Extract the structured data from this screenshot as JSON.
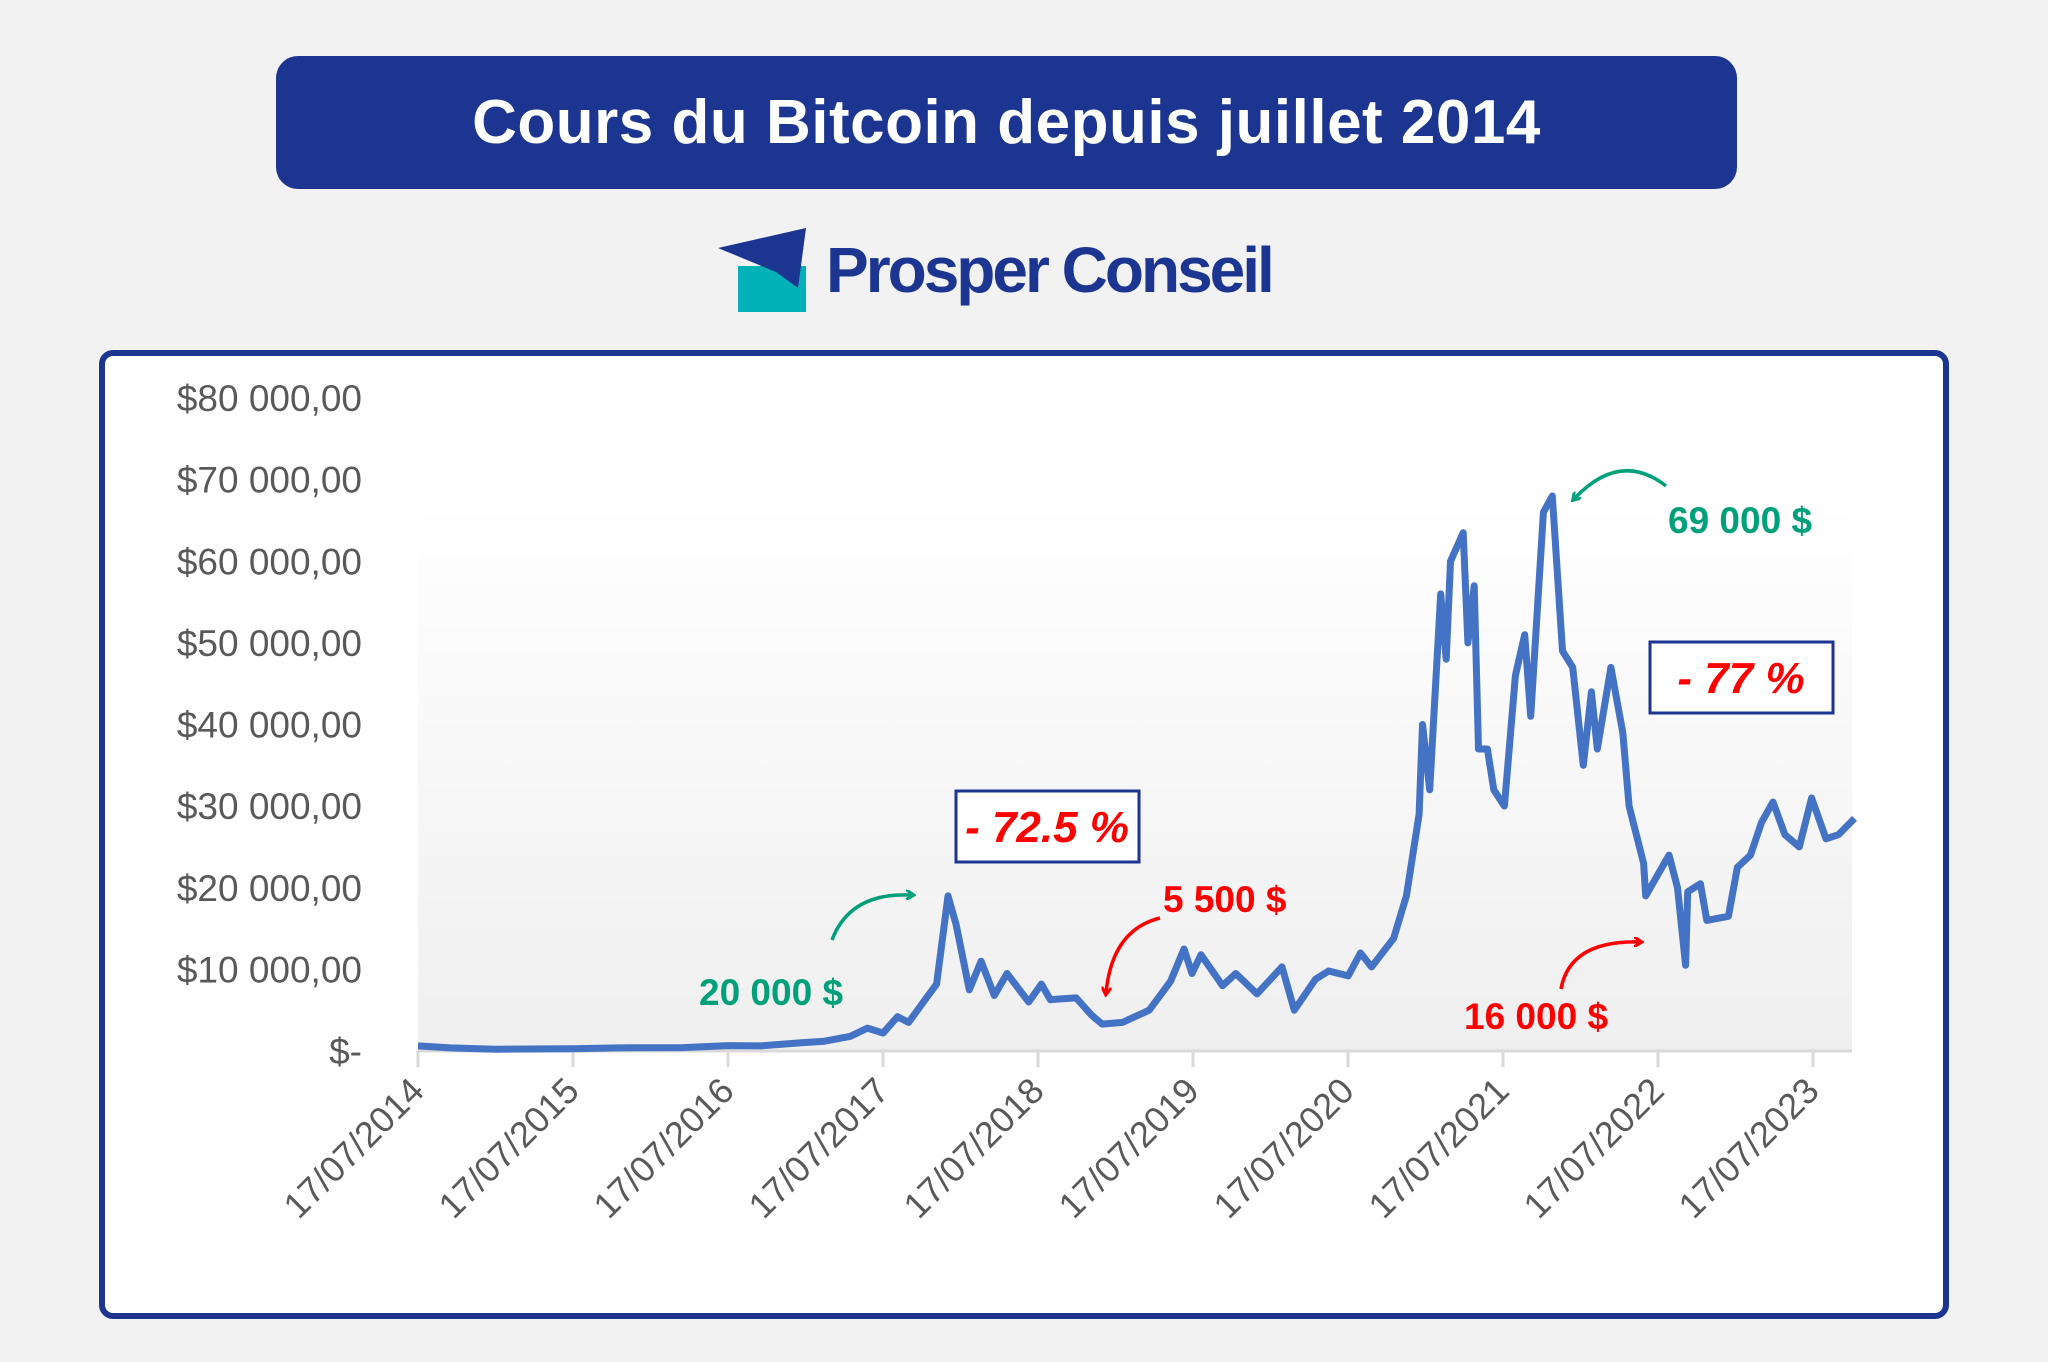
{
  "header": {
    "title": "Cours du Bitcoin depuis juillet 2014"
  },
  "logo": {
    "text": "Prosper Conseil",
    "colors": {
      "primary": "#1c3590",
      "accent": "#00b2b8"
    }
  },
  "colors": {
    "line": "#4472c4",
    "positive": "#00a07a",
    "negative": "#ff0000",
    "frame": "#1c3590"
  },
  "chart_data": {
    "type": "line",
    "title": "",
    "xlabel": "",
    "ylabel": "",
    "ylim": [
      0,
      80000
    ],
    "grid": false,
    "y_ticks": [
      {
        "value": 0,
        "label": "$-"
      },
      {
        "value": 10000,
        "label": "$10 000,00"
      },
      {
        "value": 20000,
        "label": "$20 000,00"
      },
      {
        "value": 30000,
        "label": "$30 000,00"
      },
      {
        "value": 40000,
        "label": "$40 000,00"
      },
      {
        "value": 50000,
        "label": "$50 000,00"
      },
      {
        "value": 60000,
        "label": "$60 000,00"
      },
      {
        "value": 70000,
        "label": "$70 000,00"
      },
      {
        "value": 80000,
        "label": "$80 000,00"
      }
    ],
    "x_ticks": [
      "17/07/2014",
      "17/07/2015",
      "17/07/2016",
      "17/07/2017",
      "17/07/2018",
      "17/07/2019",
      "17/07/2020",
      "17/07/2021",
      "17/07/2022",
      "17/07/2023"
    ],
    "series": [
      {
        "points": [
          [
            "2014-07-17",
            620
          ],
          [
            "2014-10-01",
            380
          ],
          [
            "2015-01-15",
            220
          ],
          [
            "2015-04-01",
            240
          ],
          [
            "2015-07-17",
            280
          ],
          [
            "2015-11-01",
            380
          ],
          [
            "2016-01-15",
            400
          ],
          [
            "2016-04-01",
            420
          ],
          [
            "2016-07-17",
            660
          ],
          [
            "2016-10-01",
            620
          ],
          [
            "2017-01-05",
            1000
          ],
          [
            "2017-03-01",
            1200
          ],
          [
            "2017-05-01",
            1800
          ],
          [
            "2017-06-10",
            2800
          ],
          [
            "2017-07-17",
            2200
          ],
          [
            "2017-08-20",
            4200
          ],
          [
            "2017-09-15",
            3500
          ],
          [
            "2017-10-20",
            6000
          ],
          [
            "2017-11-20",
            8200
          ],
          [
            "2017-12-17",
            19000
          ],
          [
            "2018-01-05",
            15500
          ],
          [
            "2018-02-05",
            7500
          ],
          [
            "2018-03-05",
            11000
          ],
          [
            "2018-04-05",
            6800
          ],
          [
            "2018-05-05",
            9500
          ],
          [
            "2018-06-25",
            6000
          ],
          [
            "2018-07-25",
            8200
          ],
          [
            "2018-08-15",
            6300
          ],
          [
            "2018-10-15",
            6500
          ],
          [
            "2018-11-20",
            4400
          ],
          [
            "2018-12-15",
            3300
          ],
          [
            "2019-02-01",
            3500
          ],
          [
            "2019-04-05",
            5000
          ],
          [
            "2019-05-25",
            8500
          ],
          [
            "2019-06-26",
            12500
          ],
          [
            "2019-07-15",
            9500
          ],
          [
            "2019-08-05",
            11800
          ],
          [
            "2019-09-25",
            8000
          ],
          [
            "2019-10-26",
            9500
          ],
          [
            "2019-12-15",
            7000
          ],
          [
            "2020-02-12",
            10300
          ],
          [
            "2020-03-12",
            5000
          ],
          [
            "2020-05-01",
            8800
          ],
          [
            "2020-06-01",
            9800
          ],
          [
            "2020-07-17",
            9200
          ],
          [
            "2020-08-15",
            12000
          ],
          [
            "2020-09-10",
            10300
          ],
          [
            "2020-11-01",
            13800
          ],
          [
            "2020-12-01",
            19000
          ],
          [
            "2020-12-31",
            29000
          ],
          [
            "2021-01-08",
            40000
          ],
          [
            "2021-01-25",
            32000
          ],
          [
            "2021-02-20",
            56000
          ],
          [
            "2021-03-05",
            48000
          ],
          [
            "2021-03-15",
            60000
          ],
          [
            "2021-04-14",
            63500
          ],
          [
            "2021-04-25",
            50000
          ],
          [
            "2021-05-10",
            57000
          ],
          [
            "2021-05-20",
            37000
          ],
          [
            "2021-06-10",
            37000
          ],
          [
            "2021-06-25",
            32000
          ],
          [
            "2021-07-20",
            30000
          ],
          [
            "2021-08-15",
            46000
          ],
          [
            "2021-09-06",
            51000
          ],
          [
            "2021-09-20",
            41000
          ],
          [
            "2021-10-20",
            66000
          ],
          [
            "2021-11-10",
            68000
          ],
          [
            "2021-12-04",
            49000
          ],
          [
            "2021-12-28",
            47000
          ],
          [
            "2022-01-22",
            35000
          ],
          [
            "2022-02-10",
            44000
          ],
          [
            "2022-02-24",
            37000
          ],
          [
            "2022-03-28",
            47000
          ],
          [
            "2022-04-25",
            39000
          ],
          [
            "2022-05-10",
            30000
          ],
          [
            "2022-06-13",
            23000
          ],
          [
            "2022-06-18",
            19000
          ],
          [
            "2022-07-10",
            21000
          ],
          [
            "2022-08-12",
            24000
          ],
          [
            "2022-09-01",
            20000
          ],
          [
            "2022-09-20",
            10500
          ],
          [
            "2022-09-25",
            19500
          ],
          [
            "2022-10-25",
            20500
          ],
          [
            "2022-11-09",
            16000
          ],
          [
            "2022-12-30",
            16500
          ],
          [
            "2023-01-20",
            22500
          ],
          [
            "2023-02-20",
            24000
          ],
          [
            "2023-03-18",
            28000
          ],
          [
            "2023-04-14",
            30500
          ],
          [
            "2023-05-12",
            26500
          ],
          [
            "2023-06-15",
            25000
          ],
          [
            "2023-07-14",
            31000
          ],
          [
            "2023-08-17",
            26000
          ],
          [
            "2023-09-15",
            26500
          ],
          [
            "2023-10-23",
            28500
          ]
        ]
      }
    ],
    "annotations": [
      {
        "text": "20 000 $",
        "kind": "peak"
      },
      {
        "text": "- 72.5 %",
        "kind": "drawdown"
      },
      {
        "text": "5 500 $",
        "kind": "trough"
      },
      {
        "text": "69 000 $",
        "kind": "peak"
      },
      {
        "text": "- 77 %",
        "kind": "drawdown"
      },
      {
        "text": "16 000 $",
        "kind": "trough"
      }
    ]
  }
}
